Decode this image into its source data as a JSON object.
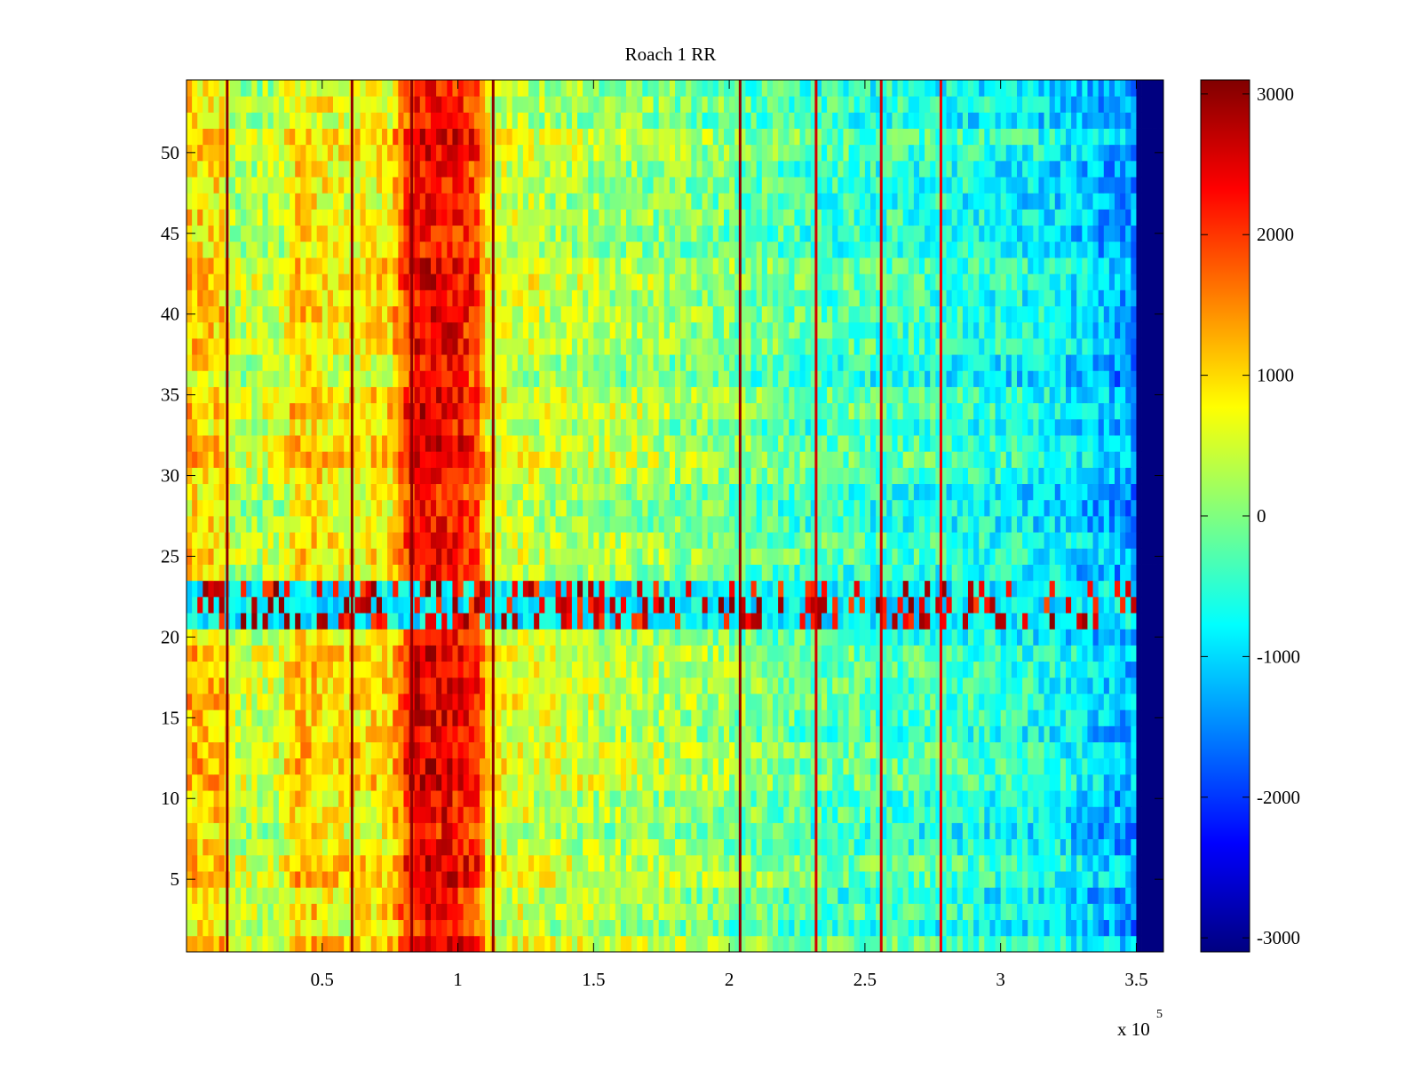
{
  "chart_data": {
    "type": "heatmap",
    "title": "Roach 1 RR",
    "xlabel": "",
    "ylabel": "",
    "x_multiplier_label": "x 10",
    "x_multiplier_exponent": "5",
    "xlim": [
      0,
      360000
    ],
    "ylim": [
      0.5,
      54.5
    ],
    "x_ticks": [
      50000,
      100000,
      150000,
      200000,
      250000,
      300000,
      350000
    ],
    "x_tick_labels": [
      "0.5",
      "1",
      "1.5",
      "2",
      "2.5",
      "3",
      "3.5"
    ],
    "y_ticks": [
      5,
      10,
      15,
      20,
      25,
      30,
      35,
      40,
      45,
      50
    ],
    "y_tick_labels": [
      "5",
      "10",
      "15",
      "20",
      "25",
      "30",
      "35",
      "40",
      "45",
      "50"
    ],
    "colorbar": {
      "colormap": "jet",
      "clim": [
        -3100,
        3100
      ],
      "ticks": [
        3000,
        2000,
        1000,
        0,
        -1000,
        -2000,
        -3000
      ],
      "tick_labels": [
        "3000",
        "2000",
        "1000",
        "0",
        "-1000",
        "-2000",
        "-3000"
      ]
    },
    "rows": 54,
    "noisy_rows": [
      21,
      22,
      23
    ],
    "column_profile": [
      {
        "x": 0,
        "value": 1100
      },
      {
        "x": 14000,
        "value": 1000
      },
      {
        "x": 16000,
        "value": 300
      },
      {
        "x": 35000,
        "value": 400
      },
      {
        "x": 40000,
        "value": 1100
      },
      {
        "x": 52000,
        "value": 900
      },
      {
        "x": 57000,
        "value": 800
      },
      {
        "x": 64000,
        "value": 800
      },
      {
        "x": 75000,
        "value": 900
      },
      {
        "x": 83000,
        "value": 2300
      },
      {
        "x": 95000,
        "value": 2400
      },
      {
        "x": 107000,
        "value": 2000
      },
      {
        "x": 112000,
        "value": 600
      },
      {
        "x": 150000,
        "value": 300
      },
      {
        "x": 200000,
        "value": 0
      },
      {
        "x": 230000,
        "value": -300
      },
      {
        "x": 280000,
        "value": -500
      },
      {
        "x": 320000,
        "value": -800
      },
      {
        "x": 345000,
        "value": -1300
      },
      {
        "x": 350000,
        "value": -1400
      },
      {
        "x": 350001,
        "value": -3100
      },
      {
        "x": 360000,
        "value": -3100
      }
    ],
    "stripes": [
      {
        "x": 15000,
        "value": 3000
      },
      {
        "x": 61000,
        "value": 3000
      },
      {
        "x": 83000,
        "value": 3000
      },
      {
        "x": 113000,
        "value": 3000
      },
      {
        "x": 204000,
        "value": 3000
      },
      {
        "x": 232000,
        "value": 2600
      },
      {
        "x": 256000,
        "value": 2600
      },
      {
        "x": 278000,
        "value": 2400
      }
    ]
  }
}
